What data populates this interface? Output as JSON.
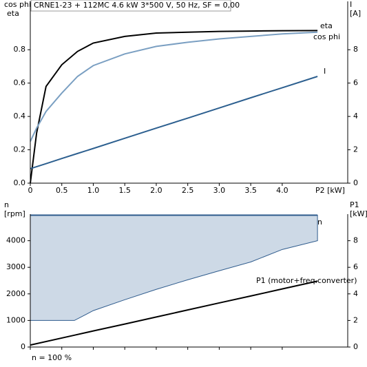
{
  "chart_data": [
    {
      "type": "line",
      "title": "CRNE1-23 + 112MC   4.6 kW   3*500 V, 50 Hz, SF = 0,00",
      "ylabel": [
        "cos phi",
        "eta"
      ],
      "y2label": [
        "I",
        "[A]"
      ],
      "xlabel": "P2 [kW]",
      "x": [
        0,
        0.1,
        0.25,
        0.5,
        0.75,
        1,
        1.5,
        2,
        2.5,
        3,
        3.5,
        4,
        4.56
      ],
      "xlim": [
        0,
        5.04
      ],
      "xticks": [
        0,
        0.5,
        {
          "value": 1,
          "label": "1.0"
        },
        1.5,
        {
          "value": 2,
          "label": "2.0"
        },
        2.5,
        {
          "value": 3,
          "label": "3.0"
        },
        3.5,
        {
          "value": 4,
          "label": "4.0"
        }
      ],
      "ylim": [
        0,
        1.09
      ],
      "yticks": [
        {
          "value": 0,
          "label": "0.0"
        },
        0.2,
        0.4,
        0.6,
        0.8
      ],
      "y2lim": [
        0,
        10.9
      ],
      "y2ticks": [
        0,
        2,
        4,
        6,
        8
      ],
      "series": [
        {
          "name": "eta",
          "color": "#000000",
          "values": [
            0,
            0.3,
            0.58,
            0.71,
            0.79,
            0.84,
            0.88,
            0.9,
            0.905,
            0.91,
            0.912,
            0.914,
            0.915
          ]
        },
        {
          "name": "cos phi",
          "color": "#7a9fc2",
          "values": [
            0.25,
            0.33,
            0.43,
            0.54,
            0.64,
            0.705,
            0.775,
            0.82,
            0.845,
            0.865,
            0.88,
            0.895,
            0.905
          ]
        },
        {
          "name": "I",
          "color": "#2c5f8f",
          "axis": "y2",
          "values": [
            0.87,
            0.99,
            1.17,
            1.48,
            1.78,
            2.08,
            2.69,
            3.3,
            3.9,
            4.51,
            5.12,
            5.72,
            6.4
          ]
        }
      ]
    },
    {
      "type": "line",
      "ylabel": [
        "n",
        "[rpm]"
      ],
      "y2label": [
        "P1",
        "[kW]"
      ],
      "note": "n = 100 %",
      "x": [
        0,
        0.7,
        1,
        1.5,
        2,
        2.5,
        3,
        3.5,
        4,
        4.56
      ],
      "xlim": [
        0,
        5.04
      ],
      "ylim": [
        0,
        5000
      ],
      "yticks": [
        0,
        1000,
        2000,
        3000,
        4000
      ],
      "y2lim": [
        0,
        10
      ],
      "y2ticks": [
        0,
        2,
        4,
        6,
        8
      ],
      "series": [
        {
          "name": "n",
          "color": "#2d5a8c",
          "fill": "#cdd9e6",
          "values": [
            4960,
            4960,
            4960,
            4960,
            4960,
            4960,
            4960,
            4960,
            4960,
            4960
          ],
          "values_low": [
            1000,
            1000,
            1370,
            1780,
            2170,
            2530,
            2870,
            3200,
            3670,
            4000
          ]
        },
        {
          "name": "P1 (motor+freq.converter)",
          "color": "#000000",
          "axis": "y2",
          "values": [
            0.15,
            0.89,
            1.21,
            1.73,
            2.26,
            2.79,
            3.32,
            3.84,
            4.37,
            4.96
          ]
        }
      ]
    }
  ]
}
